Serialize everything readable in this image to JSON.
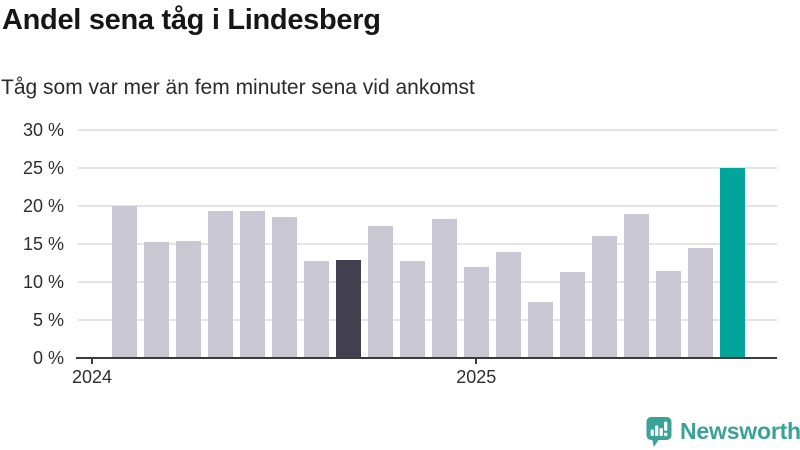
{
  "chart_data": {
    "type": "bar",
    "title": "Andel sena tåg i Lindesberg",
    "subtitle": "Tåg som var mer än fem minuter sena vid ankomst",
    "unit": "%",
    "x": [
      "2024-02",
      "2024-03",
      "2024-04",
      "2024-05",
      "2024-06",
      "2024-07",
      "2024-08",
      "2024-09",
      "2024-10",
      "2024-11",
      "2024-12",
      "2025-01",
      "2025-02",
      "2025-03",
      "2025-04",
      "2025-05",
      "2025-06",
      "2025-07",
      "2025-08",
      "2025-09"
    ],
    "values": [
      20.0,
      15.2,
      15.4,
      19.4,
      19.3,
      18.5,
      12.7,
      12.9,
      17.4,
      12.7,
      18.3,
      12.0,
      13.9,
      7.4,
      11.3,
      16.0,
      18.9,
      11.5,
      14.5,
      25.0
    ],
    "highlight": {
      "dark_index": 7,
      "accent_index": 19
    },
    "ylim": [
      0,
      30
    ],
    "yticks": [
      0,
      5,
      10,
      15,
      20,
      25,
      30
    ],
    "ytick_suffix": " %",
    "xticks": [
      {
        "label": "2024",
        "bar_index": -1
      },
      {
        "label": "2025",
        "bar_index": 11
      }
    ],
    "grid": "horizontal",
    "legend": "none"
  },
  "branding": {
    "logo_text": "Newsworthy"
  },
  "colors": {
    "bar_default": "#c9c7d1",
    "bar_dark": "#42404e",
    "bar_accent": "#00a49b",
    "grid": "#e4e4e4",
    "axis": "#3b3b3b",
    "title_text": "#161616",
    "subtitle_text": "#2b2b2b",
    "tick_text": "#2e2e2e",
    "logo": "#3aa296"
  }
}
